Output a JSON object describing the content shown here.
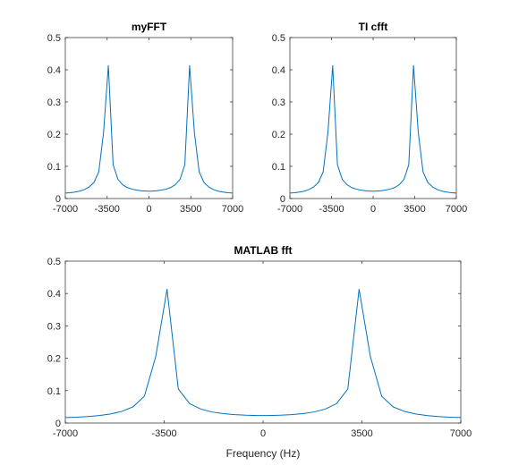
{
  "figure": {
    "background": "#ffffff",
    "axis_color": "#262626",
    "line_color": "#0072BD"
  },
  "chart_data": [
    {
      "type": "line",
      "title": "myFFT",
      "xlabel": "",
      "ylabel": "",
      "xlim": [
        -7000,
        7000
      ],
      "ylim": [
        0,
        0.5
      ],
      "xticks": [
        -7000,
        -3500,
        0,
        3500,
        7000
      ],
      "yticks": [
        0,
        0.1,
        0.2,
        0.3,
        0.4,
        0.5
      ],
      "xtick_labels": [
        "-7000",
        "-3500",
        "0",
        "3500",
        "7000"
      ],
      "ytick_labels": [
        "0",
        "0.1",
        "0.2",
        "0.3",
        "0.4",
        "0.5"
      ],
      "grid": false,
      "series": [
        {
          "x": [
            -7000,
            -6600,
            -6200,
            -5800,
            -5400,
            -5000,
            -4600,
            -4200,
            -3800,
            -3400,
            -3000,
            -2600,
            -2200,
            -1800,
            -1400,
            -1000,
            -600,
            -200,
            200,
            600,
            1000,
            1400,
            1800,
            2200,
            2600,
            3000,
            3400,
            3800,
            4200,
            4600,
            5000,
            5400,
            5800,
            6200,
            6600,
            7000
          ],
          "y": [
            0.017,
            0.018,
            0.02,
            0.023,
            0.028,
            0.036,
            0.05,
            0.083,
            0.205,
            0.413,
            0.105,
            0.06,
            0.043,
            0.034,
            0.029,
            0.026,
            0.024,
            0.023,
            0.023,
            0.024,
            0.026,
            0.029,
            0.034,
            0.043,
            0.06,
            0.105,
            0.413,
            0.205,
            0.083,
            0.05,
            0.036,
            0.028,
            0.023,
            0.02,
            0.018,
            0.017
          ]
        }
      ]
    },
    {
      "type": "line",
      "title": "TI cfft",
      "xlabel": "",
      "ylabel": "",
      "xlim": [
        -7000,
        7000
      ],
      "ylim": [
        0,
        0.5
      ],
      "xticks": [
        -7000,
        -3500,
        0,
        3500,
        7000
      ],
      "yticks": [
        0,
        0.1,
        0.2,
        0.3,
        0.4,
        0.5
      ],
      "xtick_labels": [
        "-7000",
        "-3500",
        "0",
        "3500",
        "7000"
      ],
      "ytick_labels": [
        "0",
        "0.1",
        "0.2",
        "0.3",
        "0.4",
        "0.5"
      ],
      "grid": false,
      "series": [
        {
          "x": [
            -7000,
            -6600,
            -6200,
            -5800,
            -5400,
            -5000,
            -4600,
            -4200,
            -3800,
            -3400,
            -3000,
            -2600,
            -2200,
            -1800,
            -1400,
            -1000,
            -600,
            -200,
            200,
            600,
            1000,
            1400,
            1800,
            2200,
            2600,
            3000,
            3400,
            3800,
            4200,
            4600,
            5000,
            5400,
            5800,
            6200,
            6600,
            7000
          ],
          "y": [
            0.017,
            0.018,
            0.02,
            0.023,
            0.028,
            0.036,
            0.05,
            0.083,
            0.205,
            0.413,
            0.105,
            0.06,
            0.043,
            0.034,
            0.029,
            0.026,
            0.024,
            0.023,
            0.023,
            0.024,
            0.026,
            0.029,
            0.034,
            0.043,
            0.06,
            0.105,
            0.413,
            0.205,
            0.083,
            0.05,
            0.036,
            0.028,
            0.023,
            0.02,
            0.018,
            0.017
          ]
        }
      ]
    },
    {
      "type": "line",
      "title": "MATLAB fft",
      "xlabel": "Frequency (Hz)",
      "ylabel": "",
      "xlim": [
        -7000,
        7000
      ],
      "ylim": [
        0,
        0.5
      ],
      "xticks": [
        -7000,
        -3500,
        0,
        3500,
        7000
      ],
      "yticks": [
        0,
        0.1,
        0.2,
        0.3,
        0.4,
        0.5
      ],
      "xtick_labels": [
        "-7000",
        "-3500",
        "0",
        "3500",
        "7000"
      ],
      "ytick_labels": [
        "0",
        "0.1",
        "0.2",
        "0.3",
        "0.4",
        "0.5"
      ],
      "grid": false,
      "series": [
        {
          "x": [
            -7000,
            -6600,
            -6200,
            -5800,
            -5400,
            -5000,
            -4600,
            -4200,
            -3800,
            -3400,
            -3000,
            -2600,
            -2200,
            -1800,
            -1400,
            -1000,
            -600,
            -200,
            200,
            600,
            1000,
            1400,
            1800,
            2200,
            2600,
            3000,
            3400,
            3800,
            4200,
            4600,
            5000,
            5400,
            5800,
            6200,
            6600,
            7000
          ],
          "y": [
            0.017,
            0.018,
            0.02,
            0.023,
            0.028,
            0.036,
            0.05,
            0.083,
            0.205,
            0.413,
            0.105,
            0.06,
            0.043,
            0.034,
            0.029,
            0.026,
            0.024,
            0.023,
            0.023,
            0.024,
            0.026,
            0.029,
            0.034,
            0.043,
            0.06,
            0.105,
            0.413,
            0.205,
            0.083,
            0.05,
            0.036,
            0.028,
            0.023,
            0.02,
            0.018,
            0.017
          ]
        }
      ]
    }
  ]
}
